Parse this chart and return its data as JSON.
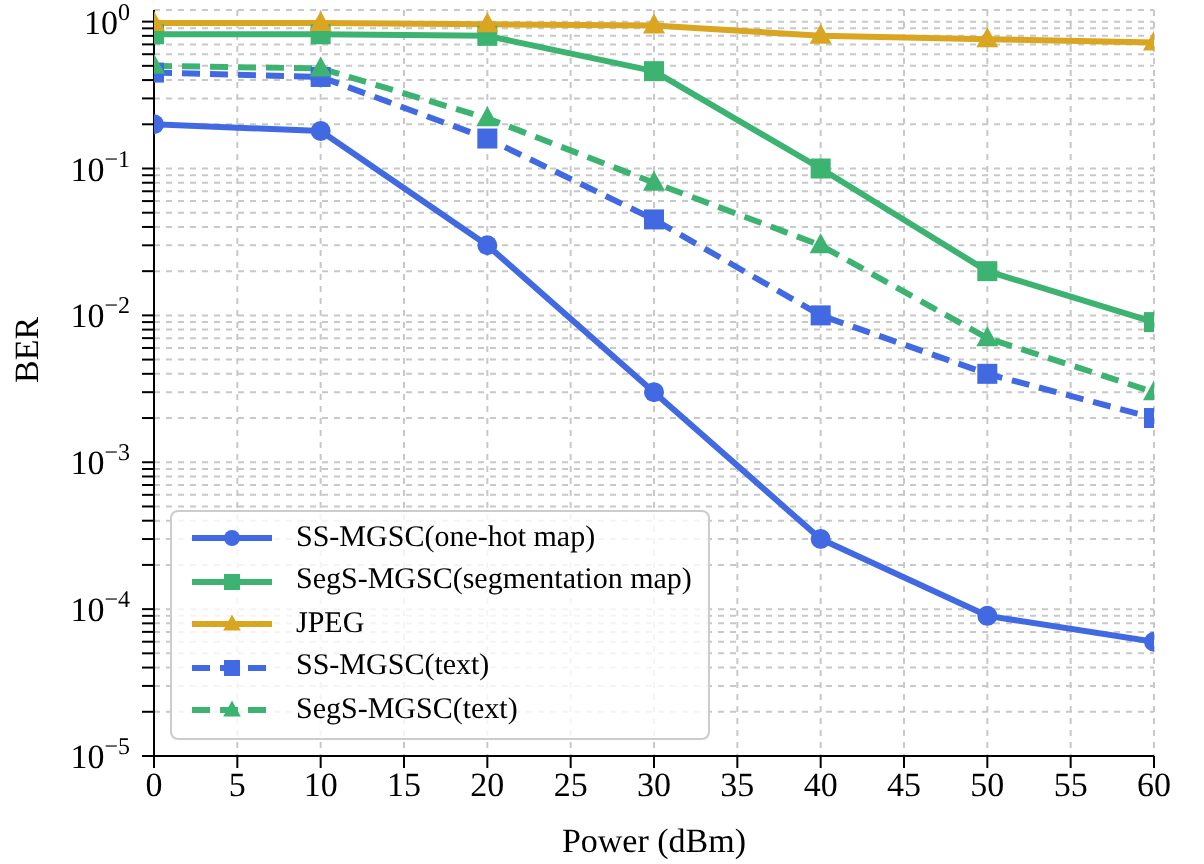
{
  "chart_data": {
    "type": "line",
    "xlabel": "Power (dBm)",
    "ylabel": "BER",
    "x": [
      0,
      10,
      20,
      30,
      40,
      50,
      60
    ],
    "log": "y",
    "grid": true,
    "legend": "bottom left",
    "xlim": [
      0,
      60
    ],
    "xticks": [
      0,
      5,
      10,
      15,
      20,
      25,
      30,
      35,
      40,
      45,
      50,
      55,
      60
    ],
    "ylim": [
      1e-05,
      1.2
    ],
    "yticks": [
      {
        "value": 1e-05,
        "label": "10$^{−5}$"
      },
      {
        "value": 2e-05,
        "label": null
      },
      {
        "value": 3e-05,
        "label": null
      },
      {
        "value": 4e-05,
        "label": null
      },
      {
        "value": 5e-05,
        "label": null
      },
      {
        "value": 6e-05,
        "label": null
      },
      {
        "value": 7e-05,
        "label": null
      },
      {
        "value": 8e-05,
        "label": null
      },
      {
        "value": 9e-05,
        "label": null
      },
      {
        "value": 0.0001,
        "label": "10$^{−4}$"
      },
      {
        "value": 0.0002,
        "label": null
      },
      {
        "value": 0.0003,
        "label": null
      },
      {
        "value": 0.0004,
        "label": null
      },
      {
        "value": 0.0005,
        "label": null
      },
      {
        "value": 0.0006,
        "label": null
      },
      {
        "value": 0.0007,
        "label": null
      },
      {
        "value": 0.0008,
        "label": null
      },
      {
        "value": 0.0009,
        "label": null
      },
      {
        "value": 0.001,
        "label": "10$^{−3}$"
      },
      {
        "value": 0.002,
        "label": null
      },
      {
        "value": 0.003,
        "label": null
      },
      {
        "value": 0.004,
        "label": null
      },
      {
        "value": 0.005,
        "label": null
      },
      {
        "value": 0.006,
        "label": null
      },
      {
        "value": 0.007,
        "label": null
      },
      {
        "value": 0.008,
        "label": null
      },
      {
        "value": 0.009,
        "label": null
      },
      {
        "value": 0.01,
        "label": "10$^{−2}$"
      },
      {
        "value": 0.02,
        "label": null
      },
      {
        "value": 0.03,
        "label": null
      },
      {
        "value": 0.04,
        "label": null
      },
      {
        "value": 0.05,
        "label": null
      },
      {
        "value": 0.06,
        "label": null
      },
      {
        "value": 0.07,
        "label": null
      },
      {
        "value": 0.08,
        "label": null
      },
      {
        "value": 0.09,
        "label": null
      },
      {
        "value": 0.1,
        "label": "10$^{−1}$"
      },
      {
        "value": 0.2,
        "label": null
      },
      {
        "value": 0.3,
        "label": null
      },
      {
        "value": 0.4,
        "label": null
      },
      {
        "value": 0.5,
        "label": null
      },
      {
        "value": 0.6,
        "label": null
      },
      {
        "value": 0.7,
        "label": null
      },
      {
        "value": 0.8,
        "label": null
      },
      {
        "value": 0.9,
        "label": null
      },
      {
        "value": 1,
        "label": "10$^{0}$"
      }
    ],
    "series": [
      {
        "name": "SS-MGSC(one-hot map)",
        "color": "#4169e1",
        "marker": "circle",
        "line_style": "solid",
        "values": [
          0.2,
          0.18,
          0.03,
          0.003,
          0.0003,
          9e-05,
          6e-05
        ]
      },
      {
        "name": "SegS-MGSC(segmentation map)",
        "color": "#3cb371",
        "marker": "square",
        "line_style": "solid",
        "values": [
          0.82,
          0.82,
          0.8,
          0.46,
          0.1,
          0.02,
          0.009
        ]
      },
      {
        "name": "JPEG",
        "color": "#daa520",
        "marker": "triangle",
        "line_style": "solid",
        "values": [
          0.98,
          0.98,
          0.96,
          0.94,
          0.8,
          0.76,
          0.72
        ]
      },
      {
        "name": "SS-MGSC(text)",
        "color": "#4169e1",
        "marker": "square",
        "line_style": "dashed",
        "values": [
          0.45,
          0.42,
          0.16,
          0.045,
          0.01,
          0.004,
          0.002
        ]
      },
      {
        "name": "SegS-MGSC(text)",
        "color": "#3cb371",
        "marker": "triangle",
        "line_style": "dashed",
        "values": [
          0.5,
          0.48,
          0.22,
          0.08,
          0.03,
          0.007,
          0.003
        ]
      }
    ]
  }
}
